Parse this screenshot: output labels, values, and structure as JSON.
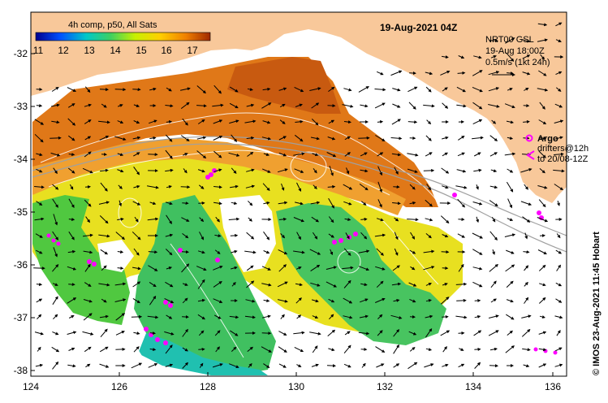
{
  "map": {
    "date_title": "19-Aug-2021 04Z",
    "credit": "© IMOS 23-Aug-2021 11:45 Hobart",
    "x_ticks": [
      "124",
      "126",
      "128",
      "130",
      "132",
      "134",
      "136"
    ],
    "y_ticks": [
      "-32",
      "-33",
      "-34",
      "-35",
      "-36",
      "-37",
      "-38"
    ],
    "colors": {
      "land": "#f8c89a",
      "no_data": "#ffffff",
      "argo": "#ff00ff"
    }
  },
  "colorbar": {
    "title": "4h comp, p50, All Sats",
    "labels": [
      "11",
      "12",
      "13",
      "14",
      "15",
      "16",
      "17"
    ],
    "colors": [
      "#00008f",
      "#0050ff",
      "#00c8c8",
      "#40d060",
      "#c8f000",
      "#ffd000",
      "#f08000",
      "#a02800"
    ]
  },
  "currents_legend": {
    "line1": "NRT00 GSL",
    "line2": "19-Aug 18:00Z",
    "line3": "0.5m/s (1kt 24h)"
  },
  "argo_legend": {
    "argo_label": "Argo",
    "drifters_line1": "drifters@12h",
    "drifters_line2": "to 20/08-12Z"
  }
}
